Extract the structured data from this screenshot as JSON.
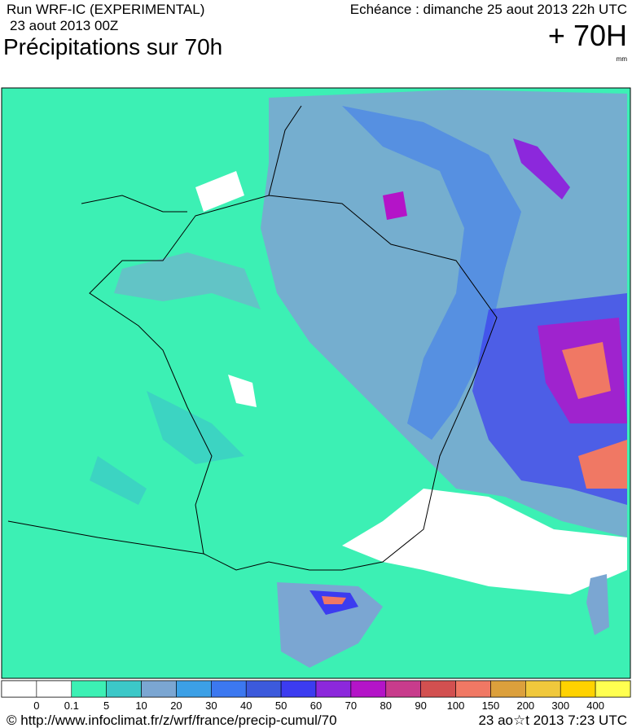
{
  "header": {
    "run": "Run WRF-IC (EXPERIMENTAL)",
    "run_date": "23 aout 2013 00Z",
    "title": "Précipitations sur 70h",
    "echeance": "Echéance : dimanche 25 aout 2013 22h UTC",
    "lead": "+ 70H",
    "unit": "mm"
  },
  "legend": {
    "levels": [
      0,
      0.1,
      5,
      10,
      20,
      30,
      40,
      50,
      60,
      70,
      80,
      90,
      100,
      150,
      200,
      300,
      400
    ],
    "colors": [
      "#ffffff",
      "#ffffff",
      "#3cf0b4",
      "#3cc8c8",
      "#7ba6d2",
      "#3ca0e6",
      "#3c78f0",
      "#3c5adc",
      "#3c3cf0",
      "#8c28dc",
      "#b414c8",
      "#c83c8c",
      "#d25050",
      "#f07864",
      "#dca03c",
      "#f0c83c",
      "#ffd200",
      "#ffff50"
    ]
  },
  "footer": {
    "source": "© http://www.infoclimat.fr/z/wrf/france/precip-cumul/70",
    "generated": "23 ao☆t 2013  7:23 UTC"
  }
}
